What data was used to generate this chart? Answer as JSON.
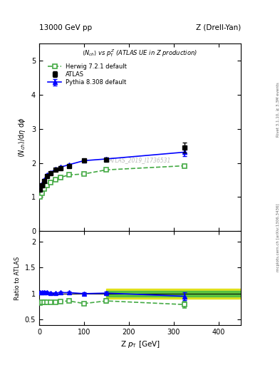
{
  "title_left": "13000 GeV pp",
  "title_right": "Z (Drell-Yan)",
  "right_label": "mcplots.cern.ch [arXiv:1306.3436]",
  "right_label2": "Rivet 3.1.10, ≥ 3.3M events",
  "watermark": "ATLAS_2019_I1736531",
  "main_title": "<N_{ch}> vs p_{T}^{Z} (ATLAS UE in Z production)",
  "ylabel_main": "<N_{ch}/dη dφ>",
  "ylabel_ratio": "Ratio to ATLAS",
  "xlabel": "Z p_{T} [GeV]",
  "xlim": [
    0,
    450
  ],
  "ylim_main": [
    0,
    5.5
  ],
  "ylim_ratio": [
    0.4,
    2.2
  ],
  "atlas_x": [
    2,
    6,
    11,
    18,
    26,
    36,
    48,
    66,
    100,
    150,
    325
  ],
  "atlas_y": [
    1.22,
    1.35,
    1.48,
    1.62,
    1.7,
    1.8,
    1.85,
    1.92,
    2.08,
    2.1,
    2.45
  ],
  "atlas_yerr": [
    0.04,
    0.03,
    0.03,
    0.03,
    0.03,
    0.03,
    0.03,
    0.03,
    0.04,
    0.05,
    0.15
  ],
  "herwig_x": [
    2,
    6,
    11,
    18,
    26,
    36,
    48,
    66,
    100,
    150,
    325
  ],
  "herwig_y": [
    1.0,
    1.12,
    1.25,
    1.35,
    1.42,
    1.52,
    1.58,
    1.65,
    1.68,
    1.8,
    1.92
  ],
  "herwig_yerr": [
    0.01,
    0.01,
    0.01,
    0.01,
    0.01,
    0.01,
    0.01,
    0.01,
    0.02,
    0.03,
    0.1
  ],
  "pythia_x": [
    2,
    6,
    11,
    18,
    26,
    36,
    48,
    66,
    100,
    150,
    325
  ],
  "pythia_y": [
    1.25,
    1.38,
    1.52,
    1.65,
    1.72,
    1.82,
    1.88,
    1.95,
    2.07,
    2.12,
    2.32
  ],
  "pythia_yerr": [
    0.02,
    0.02,
    0.02,
    0.02,
    0.02,
    0.02,
    0.02,
    0.02,
    0.03,
    0.04,
    0.12
  ],
  "ratio_herwig_x": [
    2,
    6,
    11,
    18,
    26,
    36,
    48,
    66,
    100,
    150,
    325
  ],
  "ratio_herwig_y": [
    0.82,
    0.83,
    0.84,
    0.84,
    0.84,
    0.84,
    0.85,
    0.86,
    0.81,
    0.86,
    0.79
  ],
  "ratio_herwig_yerr": [
    0.02,
    0.02,
    0.02,
    0.02,
    0.02,
    0.02,
    0.02,
    0.02,
    0.02,
    0.04,
    0.06
  ],
  "ratio_pythia_x": [
    2,
    6,
    11,
    18,
    26,
    36,
    48,
    66,
    100,
    150,
    325
  ],
  "ratio_pythia_y": [
    1.02,
    1.02,
    1.03,
    1.02,
    1.01,
    1.01,
    1.02,
    1.02,
    1.0,
    1.01,
    0.95
  ],
  "ratio_pythia_yerr": [
    0.02,
    0.02,
    0.02,
    0.02,
    0.02,
    0.02,
    0.02,
    0.02,
    0.02,
    0.03,
    0.08
  ],
  "atlas_color": "black",
  "herwig_color": "#44aa44",
  "pythia_color": "blue",
  "band_yellow_color": "#dddd00",
  "band_green_color": "#44bb44"
}
